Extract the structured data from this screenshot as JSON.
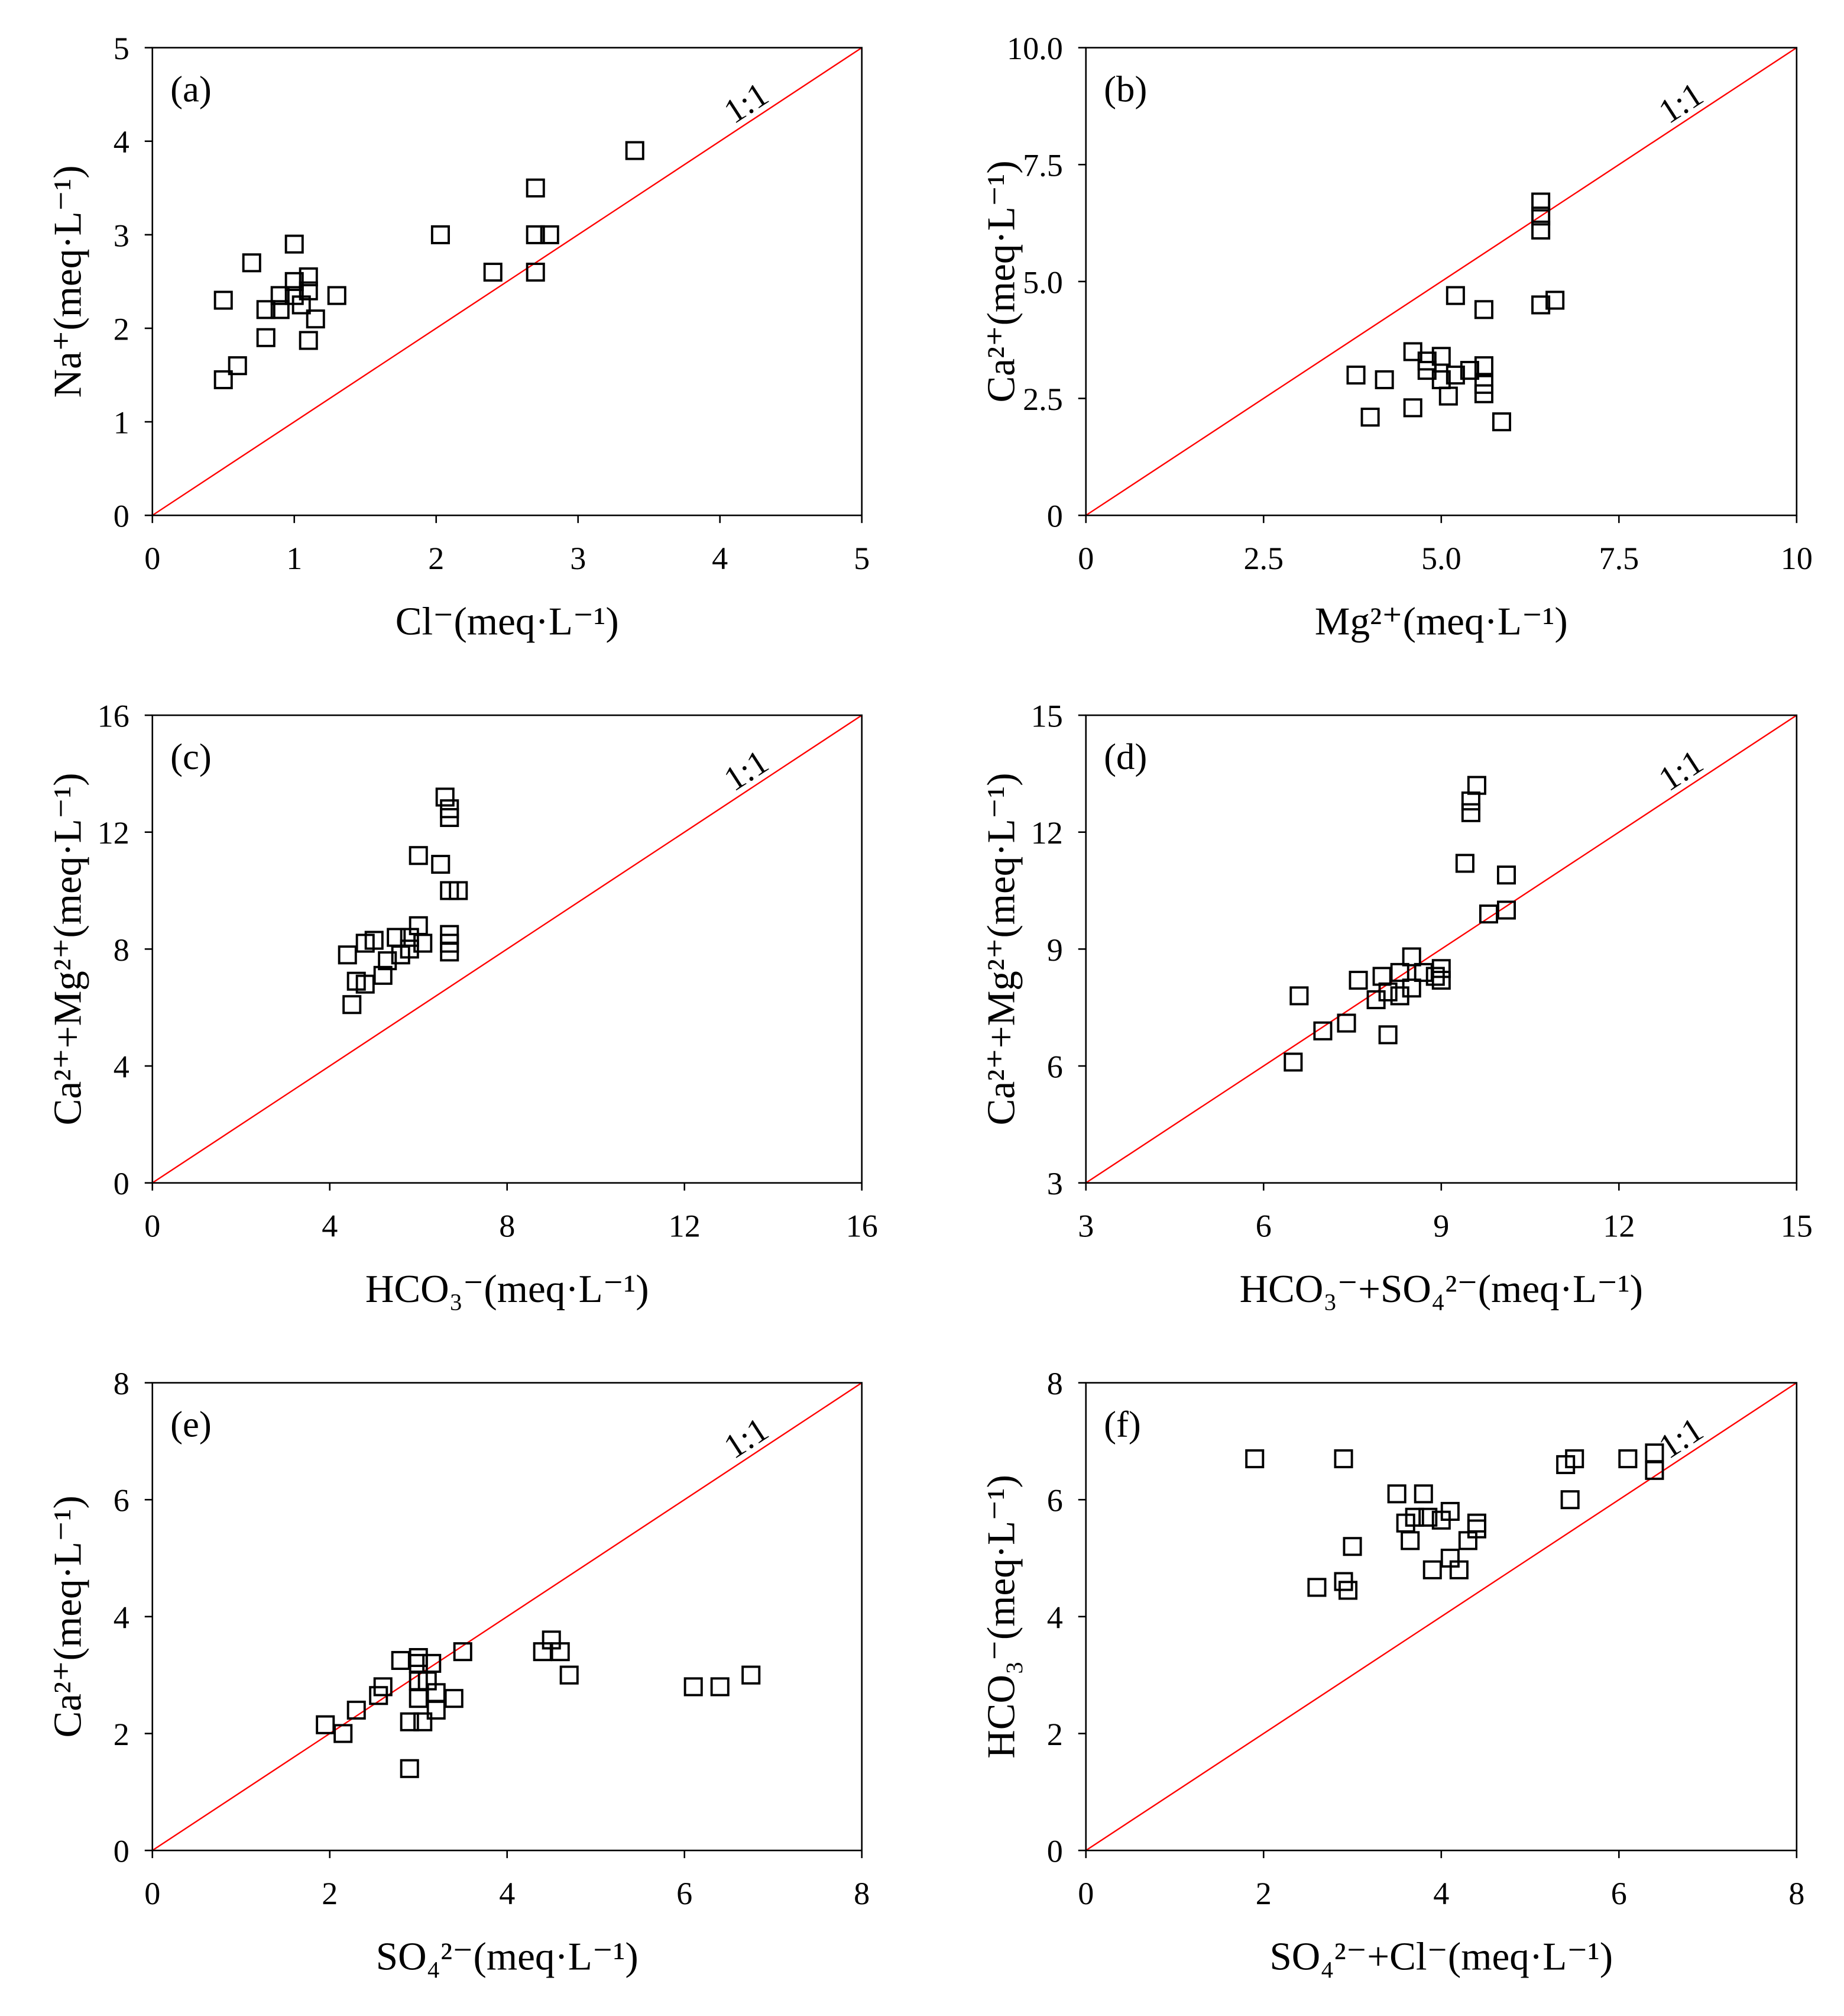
{
  "chart_data": [
    {
      "type": "scatter",
      "panel_label": "(a)",
      "xlabel": "Cl⁻(meq·L⁻¹)",
      "ylabel": "Na⁺(meq·L⁻¹)",
      "xlim": [
        0,
        5
      ],
      "ylim": [
        0,
        5
      ],
      "xticks": [
        0,
        1,
        2,
        3,
        4,
        5
      ],
      "xtick_labels": [
        "0",
        "1",
        "2",
        "3",
        "4",
        "5"
      ],
      "yticks": [
        0,
        1,
        2,
        3,
        4,
        5
      ],
      "ytick_labels": [
        "0",
        "1",
        "2",
        "3",
        "4",
        "5"
      ],
      "reference_line": "1:1",
      "reference_color": "#ff0000",
      "points": [
        [
          0.5,
          1.45
        ],
        [
          0.5,
          2.3
        ],
        [
          0.6,
          1.6
        ],
        [
          0.7,
          2.7
        ],
        [
          0.8,
          1.9
        ],
        [
          0.8,
          2.2
        ],
        [
          0.9,
          2.2
        ],
        [
          0.9,
          2.35
        ],
        [
          1.0,
          2.5
        ],
        [
          1.0,
          2.35
        ],
        [
          1.0,
          2.9
        ],
        [
          1.05,
          2.25
        ],
        [
          1.1,
          2.55
        ],
        [
          1.1,
          1.87
        ],
        [
          1.1,
          2.4
        ],
        [
          1.15,
          2.1
        ],
        [
          1.3,
          2.35
        ],
        [
          2.03,
          3.0
        ],
        [
          2.4,
          2.6
        ],
        [
          2.7,
          3.5
        ],
        [
          2.7,
          3.0
        ],
        [
          2.7,
          2.6
        ],
        [
          2.8,
          3.0
        ],
        [
          3.4,
          3.9
        ]
      ]
    },
    {
      "type": "scatter",
      "panel_label": "(b)",
      "xlabel": "Mg²⁺(meq·L⁻¹)",
      "ylabel": "Ca²⁺(meq·L⁻¹)",
      "xlim": [
        0,
        10
      ],
      "ylim": [
        0,
        10
      ],
      "xticks": [
        0,
        2.5,
        5,
        7.5,
        10
      ],
      "xtick_labels": [
        "0",
        "2.5",
        "5.0",
        "7.5",
        "10"
      ],
      "yticks": [
        0,
        2.5,
        5,
        7.5,
        10
      ],
      "ytick_labels": [
        "0",
        "2.5",
        "5.0",
        "7.5",
        "10.0"
      ],
      "reference_line": "1:1",
      "reference_color": "#ff0000",
      "points": [
        [
          3.8,
          3.0
        ],
        [
          4.0,
          2.1
        ],
        [
          4.2,
          2.9
        ],
        [
          4.6,
          3.5
        ],
        [
          4.6,
          2.3
        ],
        [
          4.8,
          3.1
        ],
        [
          4.8,
          3.3
        ],
        [
          5.0,
          3.4
        ],
        [
          5.0,
          2.9
        ],
        [
          5.1,
          2.55
        ],
        [
          5.2,
          4.7
        ],
        [
          5.2,
          3.0
        ],
        [
          5.4,
          3.1
        ],
        [
          5.6,
          4.4
        ],
        [
          5.6,
          3.2
        ],
        [
          5.6,
          2.8
        ],
        [
          5.6,
          2.6
        ],
        [
          5.85,
          2.0
        ],
        [
          6.4,
          6.7
        ],
        [
          6.4,
          6.4
        ],
        [
          6.4,
          6.1
        ],
        [
          6.4,
          4.5
        ],
        [
          6.6,
          4.6
        ]
      ]
    },
    {
      "type": "scatter",
      "panel_label": "(c)",
      "xlabel": "HCO₃⁻(meq·L⁻¹)",
      "ylabel": "Ca²⁺+Mg²⁺(meq·L⁻¹)",
      "xlim": [
        0,
        16
      ],
      "ylim": [
        0,
        16
      ],
      "xticks": [
        0,
        4,
        8,
        12,
        16
      ],
      "xtick_labels": [
        "0",
        "4",
        "8",
        "12",
        "16"
      ],
      "yticks": [
        0,
        4,
        8,
        12,
        16
      ],
      "ytick_labels": [
        "0",
        "4",
        "8",
        "12",
        "16"
      ],
      "reference_line": "1:1",
      "reference_color": "#ff0000",
      "points": [
        [
          4.4,
          7.8
        ],
        [
          4.5,
          6.1
        ],
        [
          4.6,
          6.9
        ],
        [
          4.8,
          6.8
        ],
        [
          4.8,
          8.2
        ],
        [
          5.0,
          8.3
        ],
        [
          5.2,
          7.1
        ],
        [
          5.3,
          7.6
        ],
        [
          5.5,
          8.4
        ],
        [
          5.6,
          7.8
        ],
        [
          5.8,
          8.0
        ],
        [
          5.8,
          8.4
        ],
        [
          6.0,
          8.8
        ],
        [
          6.0,
          11.2
        ],
        [
          6.1,
          8.2
        ],
        [
          6.5,
          10.9
        ],
        [
          6.6,
          13.2
        ],
        [
          6.7,
          12.8
        ],
        [
          6.7,
          12.5
        ],
        [
          6.7,
          10.0
        ],
        [
          6.9,
          10.0
        ],
        [
          6.7,
          8.5
        ],
        [
          6.7,
          8.2
        ],
        [
          6.7,
          7.9
        ]
      ]
    },
    {
      "type": "scatter",
      "panel_label": "(d)",
      "xlabel": "HCO₃⁻+SO₄²⁻(meq·L⁻¹)",
      "ylabel": "Ca²⁺+Mg²⁺(meq·L⁻¹)",
      "xlim": [
        3,
        15
      ],
      "ylim": [
        3,
        15
      ],
      "xticks": [
        3,
        6,
        9,
        12,
        15
      ],
      "xtick_labels": [
        "3",
        "6",
        "9",
        "12",
        "15"
      ],
      "yticks": [
        3,
        6,
        9,
        12,
        15
      ],
      "ytick_labels": [
        "3",
        "6",
        "9",
        "12",
        "15"
      ],
      "reference_line": "1:1",
      "reference_color": "#ff0000",
      "points": [
        [
          6.5,
          6.1
        ],
        [
          6.6,
          7.8
        ],
        [
          7.0,
          6.9
        ],
        [
          7.4,
          7.1
        ],
        [
          7.6,
          8.2
        ],
        [
          7.9,
          7.7
        ],
        [
          8.0,
          8.3
        ],
        [
          8.1,
          7.9
        ],
        [
          8.1,
          6.8
        ],
        [
          8.3,
          8.4
        ],
        [
          8.3,
          7.8
        ],
        [
          8.5,
          8.8
        ],
        [
          8.5,
          8.0
        ],
        [
          8.7,
          8.4
        ],
        [
          8.9,
          8.3
        ],
        [
          9.0,
          8.5
        ],
        [
          9.0,
          8.2
        ],
        [
          9.4,
          11.2
        ],
        [
          9.5,
          12.8
        ],
        [
          9.5,
          12.5
        ],
        [
          9.6,
          13.2
        ],
        [
          9.8,
          9.9
        ],
        [
          10.1,
          10.0
        ],
        [
          10.1,
          10.9
        ]
      ]
    },
    {
      "type": "scatter",
      "panel_label": "(e)",
      "xlabel": "SO₄²⁻(meq·L⁻¹)",
      "ylabel": "Ca²⁺(meq·L⁻¹)",
      "xlim": [
        0,
        8
      ],
      "ylim": [
        0,
        8
      ],
      "xticks": [
        0,
        2,
        4,
        6,
        8
      ],
      "xtick_labels": [
        "0",
        "2",
        "4",
        "6",
        "8"
      ],
      "yticks": [
        0,
        2,
        4,
        6,
        8
      ],
      "ytick_labels": [
        "0",
        "2",
        "4",
        "6",
        "8"
      ],
      "reference_line": "1:1",
      "reference_color": "#ff0000",
      "points": [
        [
          1.95,
          2.15
        ],
        [
          2.15,
          2.0
        ],
        [
          2.3,
          2.4
        ],
        [
          2.55,
          2.65
        ],
        [
          2.6,
          2.8
        ],
        [
          2.8,
          3.25
        ],
        [
          2.9,
          2.2
        ],
        [
          2.9,
          1.4
        ],
        [
          3.0,
          3.3
        ],
        [
          3.0,
          2.9
        ],
        [
          3.0,
          2.6
        ],
        [
          3.0,
          3.2
        ],
        [
          3.05,
          2.2
        ],
        [
          3.1,
          2.9
        ],
        [
          3.15,
          3.2
        ],
        [
          3.2,
          2.4
        ],
        [
          3.2,
          2.7
        ],
        [
          3.4,
          2.6
        ],
        [
          3.5,
          3.4
        ],
        [
          4.4,
          3.4
        ],
        [
          4.5,
          3.6
        ],
        [
          4.6,
          3.4
        ],
        [
          4.7,
          3.0
        ],
        [
          6.1,
          2.8
        ],
        [
          6.4,
          2.8
        ],
        [
          6.75,
          3.0
        ]
      ]
    },
    {
      "type": "scatter",
      "panel_label": "(f)",
      "xlabel": "SO₄²⁻+Cl⁻(meq·L⁻¹)",
      "ylabel": "HCO₃⁻(meq·L⁻¹)",
      "xlim": [
        0,
        8
      ],
      "ylim": [
        0,
        8
      ],
      "xticks": [
        0,
        2,
        4,
        6,
        8
      ],
      "xtick_labels": [
        "0",
        "2",
        "4",
        "6",
        "8"
      ],
      "yticks": [
        0,
        2,
        4,
        6,
        8
      ],
      "ytick_labels": [
        "0",
        "2",
        "4",
        "6",
        "8"
      ],
      "reference_line": "1:1",
      "reference_color": "#ff0000",
      "points": [
        [
          1.9,
          6.7
        ],
        [
          2.6,
          4.5
        ],
        [
          2.9,
          6.7
        ],
        [
          2.9,
          4.6
        ],
        [
          2.95,
          4.45
        ],
        [
          3.0,
          5.2
        ],
        [
          3.5,
          6.1
        ],
        [
          3.6,
          5.6
        ],
        [
          3.65,
          5.3
        ],
        [
          3.7,
          5.7
        ],
        [
          3.8,
          6.1
        ],
        [
          3.85,
          5.7
        ],
        [
          3.9,
          4.8
        ],
        [
          4.0,
          5.65
        ],
        [
          4.1,
          5.8
        ],
        [
          4.1,
          5.0
        ],
        [
          4.2,
          4.8
        ],
        [
          4.3,
          5.3
        ],
        [
          4.4,
          5.6
        ],
        [
          4.4,
          5.5
        ],
        [
          5.4,
          6.6
        ],
        [
          5.45,
          6.0
        ],
        [
          5.5,
          6.7
        ],
        [
          6.1,
          6.7
        ],
        [
          6.4,
          6.8
        ],
        [
          6.4,
          6.5
        ]
      ]
    }
  ]
}
